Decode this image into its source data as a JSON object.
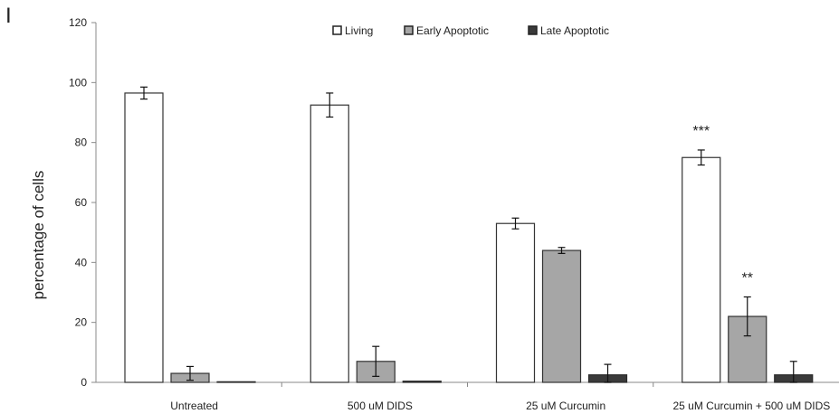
{
  "panel_label": "I",
  "chart_data": {
    "type": "bar",
    "categories": [
      "Untreated",
      "500 uM DIDS",
      "25 uM Curcumin",
      "25 uM Curcumin + 500 uM DIDS"
    ],
    "ylabel": "percentage of cells",
    "xlabel": "",
    "ylim": [
      0,
      120
    ],
    "yticks": [
      0,
      20,
      40,
      60,
      80,
      100,
      120
    ],
    "legend_position": "top-center",
    "series": [
      {
        "name": "Living",
        "color": "#ffffff",
        "values": [
          96.5,
          92.5,
          53,
          75
        ],
        "errors": [
          2,
          4,
          1.8,
          2.5
        ]
      },
      {
        "name": "Early Apoptotic",
        "color": "#a6a6a6",
        "values": [
          3,
          7,
          44,
          22
        ],
        "errors": [
          2.3,
          5,
          1,
          6.5
        ]
      },
      {
        "name": "Late Apoptotic",
        "color": "#3a3a3a",
        "values": [
          0.2,
          0.4,
          2.5,
          2.5
        ],
        "errors": [
          0,
          0,
          3.5,
          4.5
        ]
      }
    ],
    "annotations": [
      {
        "category_index": 3,
        "series_index": 0,
        "text": "***"
      },
      {
        "category_index": 3,
        "series_index": 1,
        "text": "**"
      }
    ]
  }
}
